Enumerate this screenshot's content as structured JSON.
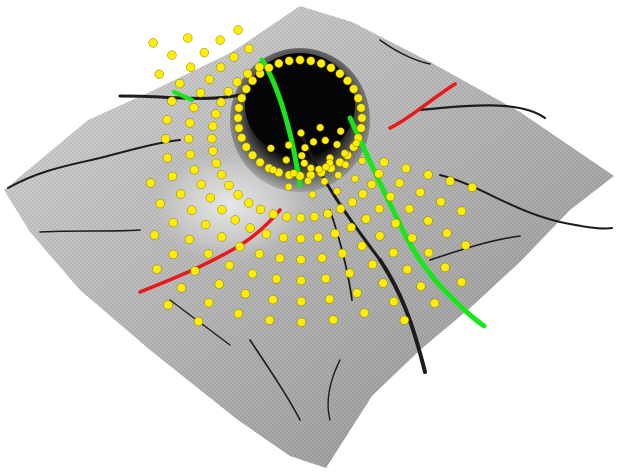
{
  "scene": {
    "subject": "3d-retinal-surface-render",
    "colors": {
      "background": "#ffffff",
      "surface_light": "#d9d9d9",
      "surface_mid": "#a8a8a8",
      "surface_dark": "#5a5a5a",
      "vessel": "#1e1e1e",
      "cup": "#0c0c0c",
      "marker": "#ffee00",
      "marker_stroke": "#8a7a00",
      "line_green": "#19e619",
      "line_red": "#e61a1a"
    },
    "marker_count": 240
  }
}
